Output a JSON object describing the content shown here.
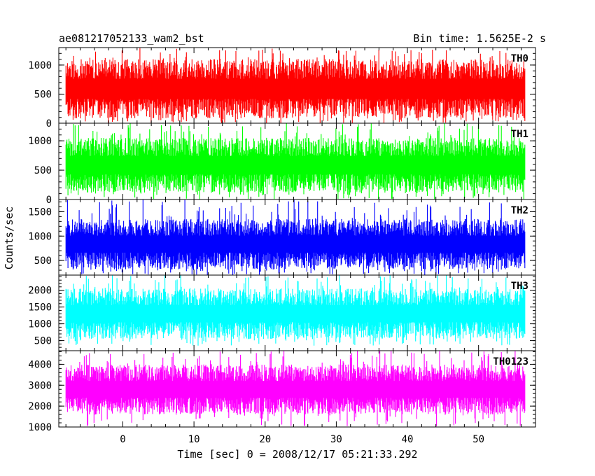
{
  "chart_data": {
    "type": "line",
    "title": "ae081217052133_wam2_bst",
    "bin_time_label": "Bin time: 1.5625E-2 s",
    "xlabel": "Time [sec] 0 = 2008/12/17 05:21:33.292",
    "ylabel": "Counts/sec",
    "xlim": [
      -9,
      58
    ],
    "x_ticks": [
      0,
      10,
      20,
      30,
      40,
      50
    ],
    "x_tick_labels": [
      "0",
      "10",
      "20",
      "30",
      "40",
      "50"
    ],
    "data_x_range": [
      -8,
      56.5
    ],
    "panels": [
      {
        "name": "TH0",
        "color": "#ff0000",
        "ylim": [
          0,
          1300
        ],
        "y_ticks": [
          0,
          500,
          1000
        ],
        "y_tick_labels": [
          "0",
          "500",
          "1000"
        ],
        "typical_range": [
          80,
          1100
        ],
        "extreme_range": [
          0,
          1300
        ]
      },
      {
        "name": "TH1",
        "color": "#00ff00",
        "ylim": [
          0,
          1300
        ],
        "y_ticks": [
          0,
          500,
          1000
        ],
        "y_tick_labels": [
          "0",
          "500",
          "1000"
        ],
        "typical_range": [
          120,
          1050
        ],
        "extreme_range": [
          0,
          1300
        ]
      },
      {
        "name": "TH2",
        "color": "#0000ff",
        "ylim": [
          200,
          1750
        ],
        "y_ticks": [
          500,
          1000,
          1500
        ],
        "y_tick_labels": [
          "500",
          "1000",
          "1500"
        ],
        "typical_range": [
          320,
          1350
        ],
        "extreme_range": [
          200,
          1750
        ]
      },
      {
        "name": "TH3",
        "color": "#00ffff",
        "ylim": [
          200,
          2450
        ],
        "y_ticks": [
          500,
          1000,
          1500,
          2000
        ],
        "y_tick_labels": [
          "500",
          "1000",
          "1500",
          "2000"
        ],
        "typical_range": [
          550,
          2050
        ],
        "extreme_range": [
          350,
          2450
        ]
      },
      {
        "name": "TH0123",
        "color": "#ff00ff",
        "ylim": [
          1000,
          4650
        ],
        "y_ticks": [
          1000,
          2000,
          3000,
          4000
        ],
        "y_tick_labels": [
          "1000",
          "2000",
          "3000",
          "4000"
        ],
        "typical_range": [
          1600,
          4000
        ],
        "extreme_range": [
          1000,
          4650
        ]
      }
    ]
  }
}
